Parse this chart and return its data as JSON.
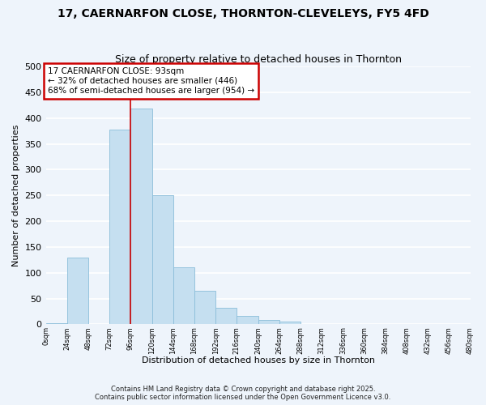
{
  "title": "17, CAERNARFON CLOSE, THORNTON-CLEVELEYS, FY5 4FD",
  "subtitle": "Size of property relative to detached houses in Thornton",
  "xlabel": "Distribution of detached houses by size in Thornton",
  "ylabel": "Number of detached properties",
  "bar_color": "#c5dff0",
  "bar_edge_color": "#8bbdd9",
  "background_color": "#eef4fb",
  "grid_color": "#ffffff",
  "bin_edges": [
    0,
    24,
    48,
    72,
    96,
    120,
    144,
    168,
    192,
    216,
    240,
    264,
    288,
    312,
    336,
    360,
    384,
    408,
    432,
    456,
    480
  ],
  "bin_labels": [
    "0sqm",
    "24sqm",
    "48sqm",
    "72sqm",
    "96sqm",
    "120sqm",
    "144sqm",
    "168sqm",
    "192sqm",
    "216sqm",
    "240sqm",
    "264sqm",
    "288sqm",
    "312sqm",
    "336sqm",
    "360sqm",
    "384sqm",
    "408sqm",
    "432sqm",
    "456sqm",
    "480sqm"
  ],
  "counts": [
    3,
    130,
    0,
    378,
    418,
    250,
    110,
    65,
    32,
    16,
    9,
    5,
    0,
    0,
    0,
    0,
    0,
    0,
    0,
    0
  ],
  "property_label": "17 CAERNARFON CLOSE: 93sqm",
  "pct_smaller": 32,
  "n_smaller": 446,
  "pct_larger": 68,
  "n_larger": 954,
  "vline_x": 96,
  "annotation_box_color": "#ffffff",
  "annotation_box_edge": "#cc0000",
  "vline_color": "#cc0000",
  "ylim": [
    0,
    500
  ],
  "yticks": [
    0,
    50,
    100,
    150,
    200,
    250,
    300,
    350,
    400,
    450,
    500
  ],
  "footer_line1": "Contains HM Land Registry data © Crown copyright and database right 2025.",
  "footer_line2": "Contains public sector information licensed under the Open Government Licence v3.0."
}
